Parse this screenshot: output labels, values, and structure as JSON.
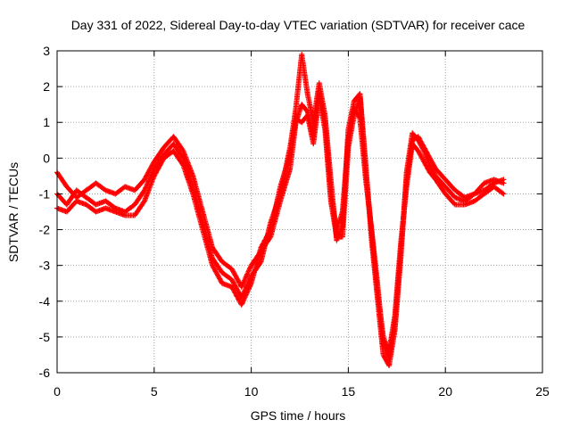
{
  "chart_data": {
    "type": "scatter",
    "title": "Day 331 of 2022, Sidereal Day-to-day VTEC variation (SDTVAR) for receiver cace",
    "xlabel": "GPS time / hours",
    "ylabel": "SDTVAR / TECUs",
    "xlim": [
      0,
      25
    ],
    "ylim": [
      -6,
      3
    ],
    "x_ticks": [
      0,
      5,
      10,
      15,
      20,
      25
    ],
    "y_ticks": [
      -6,
      -5,
      -4,
      -3,
      -2,
      -1,
      0,
      1,
      2,
      3
    ],
    "grid": true,
    "legend": "none",
    "marker": "plus",
    "color": "#ff0000",
    "series": [
      {
        "x": [
          0.0,
          0.5,
          1.0,
          1.5,
          2.0,
          2.5,
          3.0,
          3.5,
          4.0,
          4.5,
          5.0,
          5.5,
          6.0,
          6.5,
          7.0,
          7.5,
          8.0,
          8.5,
          9.0,
          9.5,
          10.0,
          10.5,
          11.0,
          11.5,
          12.0,
          12.3,
          12.6,
          12.9,
          13.2,
          13.5,
          13.8,
          14.1,
          14.4,
          14.7,
          15.0,
          15.3,
          15.6,
          15.9,
          16.2,
          16.5,
          16.8,
          17.1,
          17.4,
          17.7,
          18.0,
          18.3,
          18.6,
          18.9,
          19.2,
          19.5,
          20.0,
          20.5,
          21.0,
          21.5,
          22.0,
          22.5,
          23.0
        ],
        "y": [
          -0.4,
          -0.8,
          -1.1,
          -0.9,
          -0.7,
          -0.9,
          -1.0,
          -0.8,
          -0.9,
          -0.6,
          -0.1,
          0.3,
          0.6,
          0.2,
          -0.5,
          -1.5,
          -2.5,
          -2.9,
          -3.1,
          -3.6,
          -3.0,
          -2.6,
          -2.2,
          -1.2,
          -0.3,
          1.0,
          1.5,
          1.3,
          0.6,
          1.9,
          1.0,
          -1.0,
          -2.0,
          -1.5,
          0.5,
          1.4,
          1.1,
          -0.6,
          -2.0,
          -3.5,
          -5.2,
          -5.6,
          -4.6,
          -2.6,
          -0.6,
          0.5,
          0.6,
          0.3,
          0.0,
          -0.3,
          -0.6,
          -0.9,
          -1.1,
          -1.0,
          -0.7,
          -0.6,
          -0.7
        ]
      },
      {
        "x": [
          0.0,
          0.5,
          1.0,
          1.5,
          2.0,
          2.5,
          3.0,
          3.5,
          4.0,
          4.5,
          5.0,
          5.5,
          6.0,
          6.5,
          7.0,
          7.5,
          8.0,
          8.5,
          9.0,
          9.5,
          10.0,
          10.5,
          11.0,
          11.5,
          12.0,
          12.3,
          12.6,
          12.9,
          13.2,
          13.5,
          13.8,
          14.1,
          14.4,
          14.7,
          15.0,
          15.3,
          15.6,
          15.9,
          16.2,
          16.5,
          16.8,
          17.1,
          17.4,
          17.7,
          18.0,
          18.3,
          18.6,
          18.9,
          19.2,
          19.5,
          20.0,
          20.5,
          21.0,
          21.5,
          22.0,
          22.5,
          23.0
        ],
        "y": [
          -1.0,
          -1.3,
          -0.9,
          -1.1,
          -1.3,
          -1.2,
          -1.4,
          -1.5,
          -1.3,
          -0.9,
          -0.3,
          0.1,
          0.4,
          0.0,
          -0.8,
          -1.8,
          -2.8,
          -3.2,
          -3.4,
          -3.9,
          -3.3,
          -2.9,
          -1.8,
          -1.0,
          0.3,
          1.4,
          2.9,
          1.8,
          1.0,
          2.1,
          1.2,
          -0.6,
          -2.3,
          -1.9,
          0.8,
          1.6,
          1.8,
          -0.2,
          -2.3,
          -3.9,
          -5.5,
          -5.8,
          -4.8,
          -2.8,
          -0.4,
          0.7,
          0.5,
          0.2,
          -0.2,
          -0.5,
          -0.8,
          -1.1,
          -1.2,
          -1.0,
          -0.9,
          -0.7,
          -0.6
        ]
      },
      {
        "x": [
          0.0,
          0.5,
          1.0,
          1.5,
          2.0,
          2.5,
          3.0,
          3.5,
          4.0,
          4.5,
          5.0,
          5.5,
          6.0,
          6.5,
          7.0,
          7.5,
          8.0,
          8.5,
          9.0,
          9.5,
          10.0,
          10.5,
          11.0,
          11.5,
          12.0,
          12.3,
          12.6,
          12.9,
          13.2,
          13.5,
          13.8,
          14.1,
          14.4,
          14.7,
          15.0,
          15.3,
          15.6,
          15.9,
          16.2,
          16.5,
          16.8,
          17.1,
          17.4,
          17.7,
          18.0,
          18.3,
          18.6,
          18.9,
          19.2,
          19.5,
          20.0,
          20.5,
          21.0,
          21.5,
          22.0,
          22.5,
          23.0
        ],
        "y": [
          -1.4,
          -1.5,
          -1.2,
          -1.3,
          -1.5,
          -1.4,
          -1.5,
          -1.6,
          -1.6,
          -1.2,
          -0.5,
          0.0,
          0.2,
          -0.2,
          -1.0,
          -2.0,
          -3.0,
          -3.5,
          -3.6,
          -4.1,
          -3.5,
          -2.5,
          -2.0,
          -0.8,
          0.1,
          1.1,
          1.0,
          1.2,
          0.4,
          1.7,
          0.8,
          -1.2,
          -2.2,
          -2.2,
          0.3,
          1.2,
          1.7,
          -0.4,
          -2.1,
          -3.7,
          -5.0,
          -5.4,
          -4.4,
          -2.4,
          -0.8,
          0.4,
          0.2,
          -0.1,
          -0.4,
          -0.6,
          -1.0,
          -1.3,
          -1.3,
          -1.2,
          -1.0,
          -0.8,
          -1.0
        ]
      }
    ]
  }
}
